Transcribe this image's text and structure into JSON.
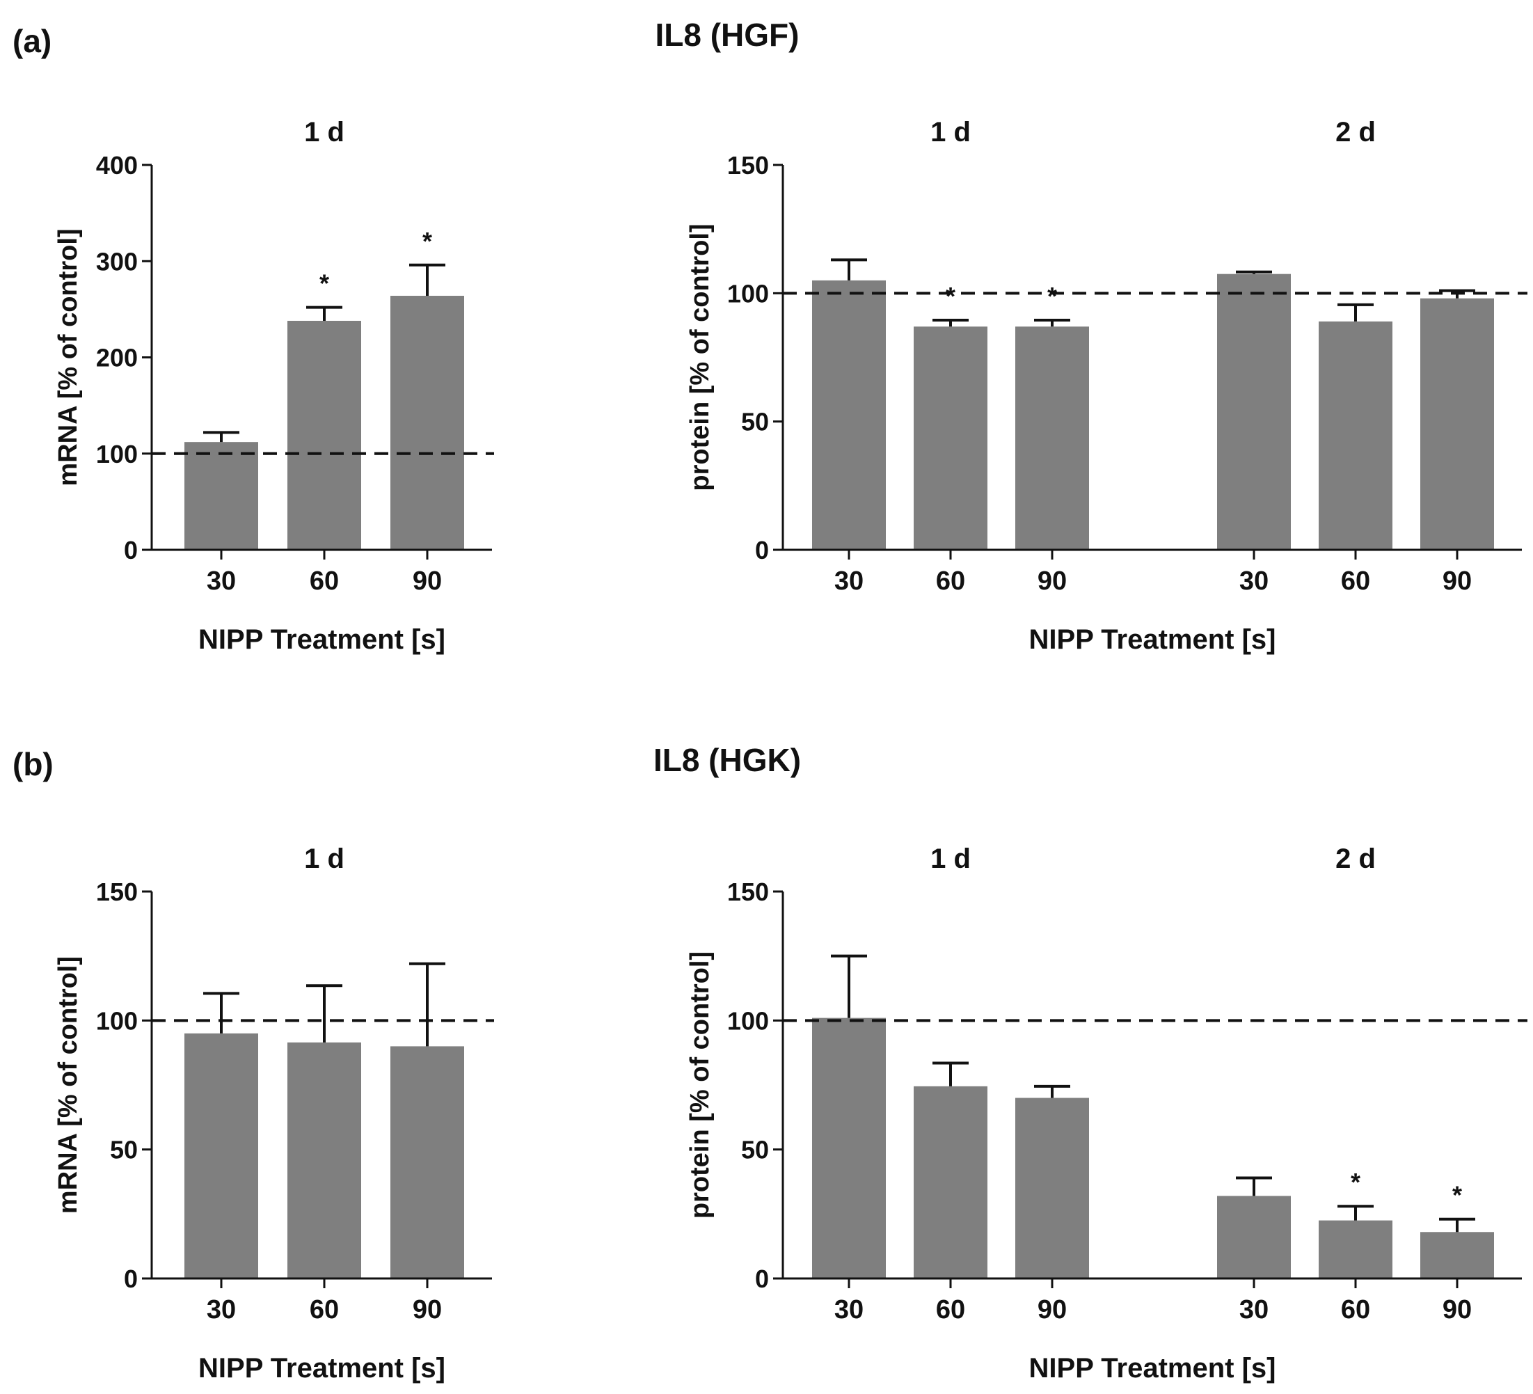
{
  "figure": {
    "colors": {
      "bar": "#7f7f7f",
      "ink": "#111111",
      "background": "#ffffff"
    },
    "panels": [
      {
        "label": "(a)",
        "title": "IL8 (HGF)"
      },
      {
        "label": "(b)",
        "title": "IL8 (HGK)"
      }
    ]
  },
  "chart_data": [
    {
      "type": "bar",
      "panel": "(a)",
      "ylabel": "mRNA [% of control]",
      "xlabel": "NIPP Treatment [s]",
      "ylim": [
        0,
        400
      ],
      "yticks": [
        0,
        100,
        200,
        300,
        400
      ],
      "reference_line": 100,
      "groups": [
        {
          "name": "1 d",
          "categories": [
            "30",
            "60",
            "90"
          ],
          "values": [
            112,
            238,
            264
          ],
          "errors": [
            10,
            14,
            32
          ],
          "significance": [
            "",
            "*",
            "*"
          ]
        }
      ]
    },
    {
      "type": "bar",
      "panel": "(a)",
      "ylabel": "protein [% of control]",
      "xlabel": "NIPP Treatment [s]",
      "ylim": [
        0,
        150
      ],
      "yticks": [
        0,
        50,
        100,
        150
      ],
      "reference_line": 100,
      "groups": [
        {
          "name": "1 d",
          "categories": [
            "30",
            "60",
            "90"
          ],
          "values": [
            105,
            87,
            87
          ],
          "errors": [
            8,
            2.5,
            2.5
          ],
          "significance": [
            "",
            "*",
            "*"
          ]
        },
        {
          "name": "2 d",
          "categories": [
            "30",
            "60",
            "90"
          ],
          "values": [
            107.5,
            89,
            98
          ],
          "errors": [
            0.8,
            6.5,
            3
          ],
          "significance": [
            "",
            "",
            ""
          ]
        }
      ]
    },
    {
      "type": "bar",
      "panel": "(b)",
      "ylabel": "mRNA [% of control]",
      "xlabel": "NIPP Treatment [s]",
      "ylim": [
        0,
        150
      ],
      "yticks": [
        0,
        50,
        100,
        150
      ],
      "reference_line": 100,
      "groups": [
        {
          "name": "1 d",
          "categories": [
            "30",
            "60",
            "90"
          ],
          "values": [
            95,
            91.5,
            90
          ],
          "errors": [
            15.5,
            22,
            32
          ],
          "significance": [
            "",
            "",
            ""
          ]
        }
      ]
    },
    {
      "type": "bar",
      "panel": "(b)",
      "ylabel": "protein [% of control]",
      "xlabel": "NIPP Treatment [s]",
      "ylim": [
        0,
        150
      ],
      "yticks": [
        0,
        50,
        100,
        150
      ],
      "reference_line": 100,
      "groups": [
        {
          "name": "1 d",
          "categories": [
            "30",
            "60",
            "90"
          ],
          "values": [
            101,
            74.5,
            70
          ],
          "errors": [
            24,
            9,
            4.5
          ],
          "significance": [
            "",
            "",
            ""
          ]
        },
        {
          "name": "2 d",
          "categories": [
            "30",
            "60",
            "90"
          ],
          "values": [
            32,
            22.5,
            18
          ],
          "errors": [
            7,
            5.5,
            5
          ],
          "significance": [
            "",
            "*",
            "*"
          ]
        }
      ]
    }
  ]
}
